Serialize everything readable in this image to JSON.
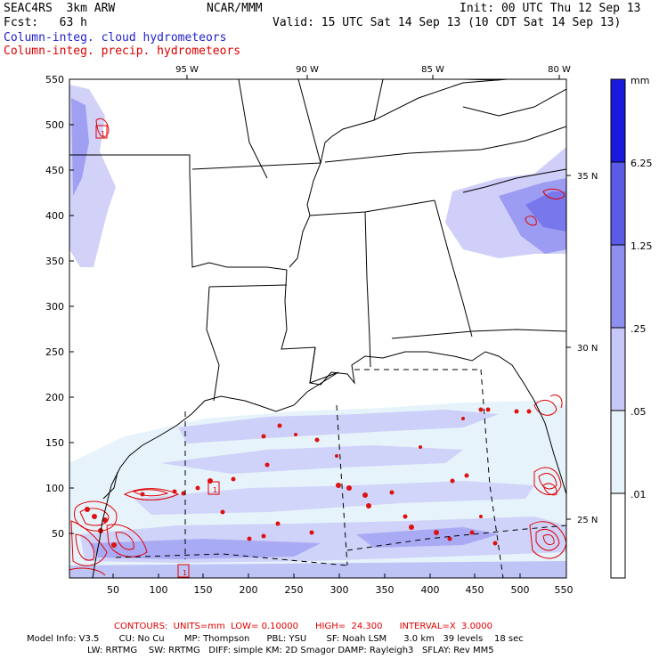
{
  "header": {
    "model": "SEAC4RS  3km ARW",
    "org": "NCAR/MMM",
    "init": "Init: 00 UTC Thu 12 Sep 13",
    "fcst": "Fcst:   63 h",
    "valid": "Valid: 15 UTC Sat 14 Sep 13 (10 CDT Sat 14 Sep 13)",
    "field_cloud": "Column-integ. cloud hydrometeors",
    "field_precip": "Column-integ. precip. hydrometeors"
  },
  "map": {
    "x_ticks": [
      "50",
      "100",
      "150",
      "200",
      "250",
      "300",
      "350",
      "400",
      "450",
      "500",
      "550"
    ],
    "y_ticks": [
      "50",
      "100",
      "150",
      "200",
      "250",
      "300",
      "350",
      "400",
      "450",
      "500",
      "550"
    ],
    "lon_labels": [
      "95 W",
      "90 W",
      "85 W",
      "80 W"
    ],
    "lat_labels": [
      "35 N",
      "30 N",
      "25 N"
    ],
    "box_labels": [
      "1",
      "1",
      "1"
    ]
  },
  "colorbar": {
    "unit": "mm",
    "levels": [
      "6.25",
      "1.25",
      ".25",
      ".05",
      ".01"
    ],
    "colors": [
      "#1a1adf",
      "#5b5be8",
      "#8f8ff0",
      "#c7c7f8",
      "#e6f3fb",
      "#ffffff"
    ]
  },
  "footer": {
    "contours": "CONTOURS:  UNITS=mm  LOW= 0.10000      HIGH=  24.300      INTERVAL=X  3.0000",
    "line1": "Model Info: V3.5       CU: No Cu       MP: Thompson      PBL: YSU       SF: Noah LSM      3.0 km   39 levels    18 sec",
    "line2": "LW: RRTMG    SW: RRTMG   DIFF: simple KM: 2D Smagor DAMP: Rayleigh3   SFLAY: Rev MM5"
  }
}
